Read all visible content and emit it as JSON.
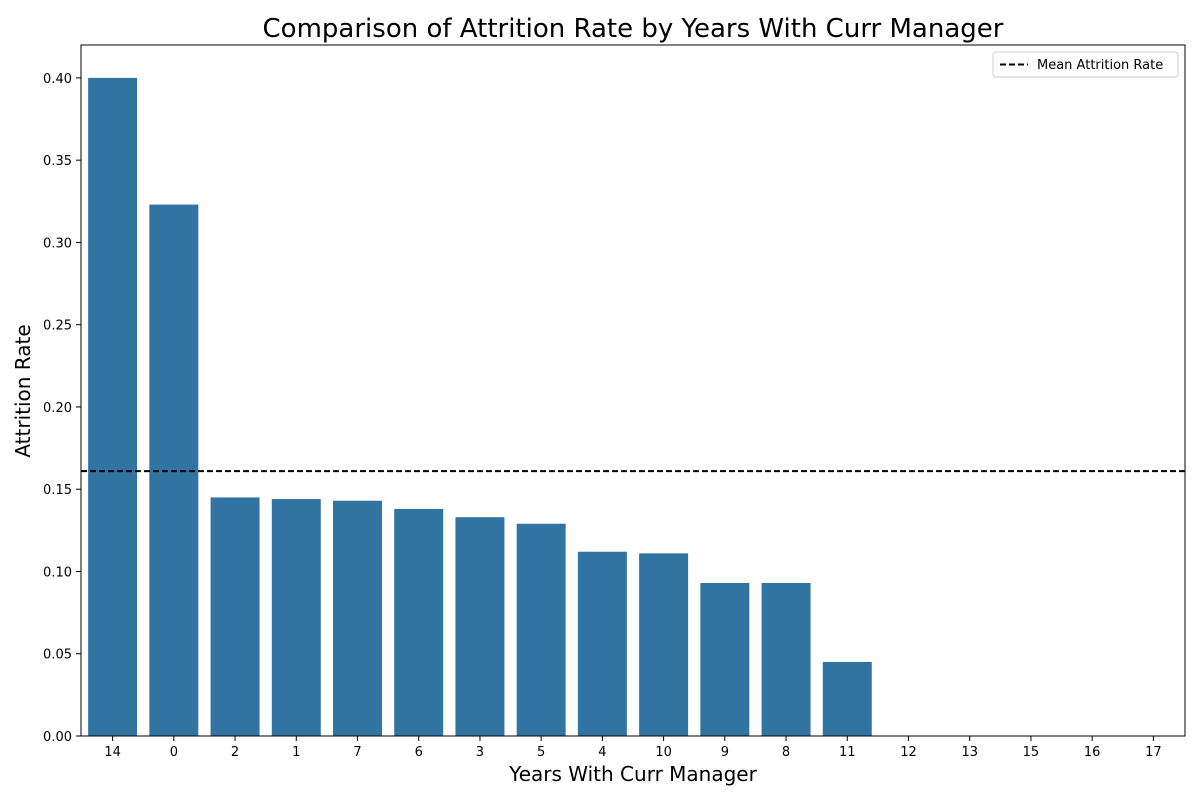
{
  "chart_data": {
    "type": "bar",
    "title": "Comparison of Attrition Rate by Years With Curr Manager",
    "xlabel": "Years With Curr Manager",
    "ylabel": "Attrition Rate",
    "categories": [
      "14",
      "0",
      "2",
      "1",
      "7",
      "6",
      "3",
      "5",
      "4",
      "10",
      "9",
      "8",
      "11",
      "12",
      "13",
      "15",
      "16",
      "17"
    ],
    "values": [
      0.4,
      0.323,
      0.145,
      0.144,
      0.143,
      0.138,
      0.133,
      0.129,
      0.112,
      0.111,
      0.093,
      0.093,
      0.045,
      0.0,
      0.0,
      0.0,
      0.0,
      0.0
    ],
    "ylim": [
      0,
      0.42
    ],
    "yticks": [
      "0.00",
      "0.05",
      "0.10",
      "0.15",
      "0.20",
      "0.25",
      "0.30",
      "0.35",
      "0.40"
    ],
    "mean_line": {
      "label": "Mean Attrition Rate",
      "value": 0.161,
      "color": "#000000",
      "style": "dashed"
    },
    "bar_color": "#3274a1",
    "grid": false,
    "legend_position": "top-right"
  }
}
